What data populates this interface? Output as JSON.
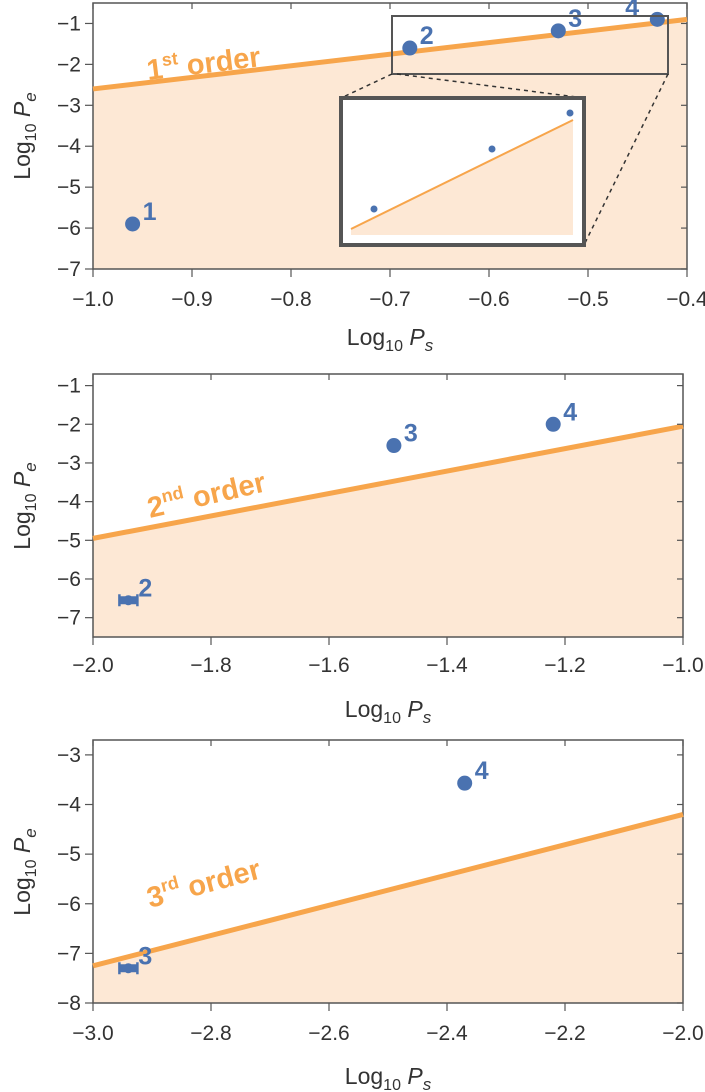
{
  "figure": {
    "x_axis_label": "Log10 Ps",
    "y_axis_label": "Log10 Pe"
  },
  "colors": {
    "bound_line": "#f7a54b",
    "bound_fill": "#fde8d5",
    "points": "#4a72b0",
    "frame": "#555555",
    "inset_frame": "#555555",
    "text": "#333333"
  },
  "chart_data": [
    {
      "type": "scatter",
      "x_axis": {
        "label": "Log10 Ps",
        "range": [
          -1.0,
          -0.4
        ],
        "ticks": [
          "−1.0",
          "−0.9",
          "−0.8",
          "−0.7",
          "−0.6",
          "−0.5",
          "−0.4"
        ]
      },
      "y_axis": {
        "label": "Log10 Pe",
        "range": [
          -7,
          -0.5
        ],
        "ticks": [
          "−1",
          "−2",
          "−3",
          "−4",
          "−5",
          "−6",
          "−7"
        ]
      },
      "bound": {
        "label_num": "1",
        "label_sup": "st",
        "label_word": "order",
        "x": [
          -1.0,
          -0.4
        ],
        "y": [
          -2.6,
          -0.9
        ],
        "region": "below"
      },
      "series": [
        {
          "points": [
            {
              "label": "1",
              "x": -0.96,
              "y": -5.9
            },
            {
              "label": "2",
              "x": -0.68,
              "y": -1.6
            },
            {
              "label": "3",
              "x": -0.53,
              "y": -1.18
            },
            {
              "label": "4",
              "x": -0.43,
              "y": -0.9
            }
          ]
        }
      ],
      "inset": {
        "zoom_of_points": [
          "2",
          "3",
          "4"
        ],
        "grid": false
      }
    },
    {
      "type": "scatter",
      "x_axis": {
        "label": "Log10 Ps",
        "range": [
          -2.0,
          -1.0
        ],
        "ticks": [
          "−2.0",
          "−1.8",
          "−1.6",
          "−1.4",
          "−1.2",
          "−1.0"
        ]
      },
      "y_axis": {
        "label": "Log10 Pe",
        "range": [
          -7.5,
          -0.7
        ],
        "ticks": [
          "−1",
          "−2",
          "−3",
          "−4",
          "−5",
          "−6",
          "−7"
        ]
      },
      "bound": {
        "label_num": "2",
        "label_sup": "nd",
        "label_word": "order",
        "x": [
          -2.0,
          -1.0
        ],
        "y": [
          -4.95,
          -2.05
        ],
        "region": "below"
      },
      "series": [
        {
          "points": [
            {
              "label": "2",
              "x": -1.94,
              "y": -6.55,
              "error_bar": true
            },
            {
              "label": "3",
              "x": -1.49,
              "y": -2.55
            },
            {
              "label": "4",
              "x": -1.22,
              "y": -2.0
            }
          ]
        }
      ]
    },
    {
      "type": "scatter",
      "x_axis": {
        "label": "Log10 Ps",
        "range": [
          -3.0,
          -2.0
        ],
        "ticks": [
          "−3.0",
          "−2.8",
          "−2.6",
          "−2.4",
          "−2.2",
          "−2.0"
        ]
      },
      "y_axis": {
        "label": "Log10 Pe",
        "range": [
          -8,
          -2.7
        ],
        "ticks": [
          "−3",
          "−4",
          "−5",
          "−6",
          "−7",
          "−8"
        ]
      },
      "bound": {
        "label_num": "3",
        "label_sup": "rd",
        "label_word": "order",
        "x": [
          -3.0,
          -2.0
        ],
        "y": [
          -7.25,
          -4.2
        ],
        "region": "below"
      },
      "series": [
        {
          "points": [
            {
              "label": "3",
              "x": -2.94,
              "y": -7.3,
              "error_bar": true
            },
            {
              "label": "4",
              "x": -2.37,
              "y": -3.57
            }
          ]
        }
      ]
    }
  ]
}
